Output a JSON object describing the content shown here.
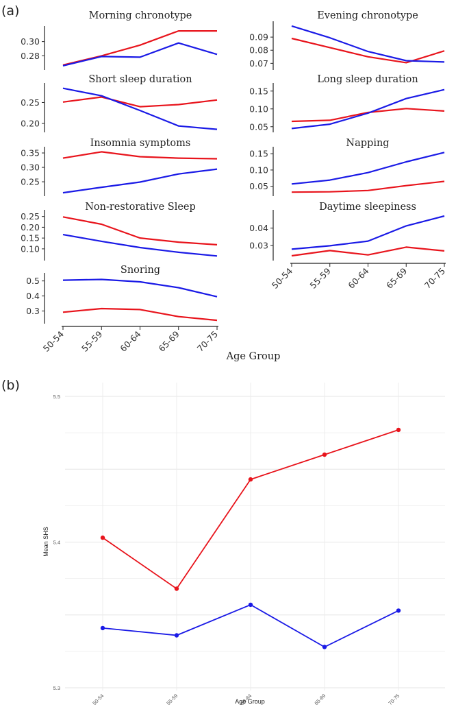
{
  "panel_a_label": "(a)",
  "panel_b_label": "(b)",
  "colors": {
    "series_a": "#e8141c",
    "series_b": "#1a1ae6"
  },
  "chart_data": [
    {
      "type": "line",
      "title": "Morning chronotype",
      "x": [
        "50-54",
        "55-59",
        "60-64",
        "65-69",
        "70-75"
      ],
      "ylim": [
        0.262,
        0.318
      ],
      "yticks": [
        "0.28",
        "0.30"
      ],
      "series": [
        {
          "name": "red",
          "values": [
            0.267,
            0.28,
            0.295,
            0.315,
            0.315
          ]
        },
        {
          "name": "blue",
          "values": [
            0.266,
            0.279,
            0.278,
            0.298,
            0.282
          ]
        }
      ]
    },
    {
      "type": "line",
      "title": "Evening chronotype",
      "x": [
        "50-54",
        "55-59",
        "60-64",
        "65-69",
        "70-75"
      ],
      "ylim": [
        0.066,
        0.1
      ],
      "yticks": [
        "0.07",
        "0.08",
        "0.09"
      ],
      "series": [
        {
          "name": "red",
          "values": [
            0.089,
            0.082,
            0.075,
            0.0705,
            0.0795
          ]
        },
        {
          "name": "blue",
          "values": [
            0.0985,
            0.0895,
            0.079,
            0.072,
            0.071
          ]
        }
      ]
    },
    {
      "type": "line",
      "title": "Short sleep duration",
      "x": [
        "50-54",
        "55-59",
        "60-64",
        "65-69",
        "70-75"
      ],
      "ylim": [
        0.182,
        0.29
      ],
      "yticks": [
        "0.20",
        "0.25"
      ],
      "series": [
        {
          "name": "red",
          "values": [
            0.251,
            0.263,
            0.24,
            0.245,
            0.256
          ]
        },
        {
          "name": "blue",
          "values": [
            0.284,
            0.266,
            0.231,
            0.194,
            0.186
          ]
        }
      ]
    },
    {
      "type": "line",
      "title": "Long sleep duration",
      "x": [
        "50-54",
        "55-59",
        "60-64",
        "65-69",
        "70-75"
      ],
      "ylim": [
        0.038,
        0.165
      ],
      "yticks": [
        "0.05",
        "0.10",
        "0.15"
      ],
      "series": [
        {
          "name": "red",
          "values": [
            0.065,
            0.068,
            0.09,
            0.101,
            0.094
          ]
        },
        {
          "name": "blue",
          "values": [
            0.045,
            0.057,
            0.088,
            0.129,
            0.154
          ]
        }
      ]
    },
    {
      "type": "line",
      "title": "Insomnia symptoms",
      "x": [
        "50-54",
        "55-59",
        "60-64",
        "65-69",
        "70-75"
      ],
      "ylim": [
        0.205,
        0.362
      ],
      "yticks": [
        "0.25",
        "0.30",
        "0.35"
      ],
      "series": [
        {
          "name": "red",
          "values": [
            0.332,
            0.354,
            0.337,
            0.332,
            0.33
          ]
        },
        {
          "name": "blue",
          "values": [
            0.212,
            0.231,
            0.249,
            0.277,
            0.294
          ]
        }
      ]
    },
    {
      "type": "line",
      "title": "Napping",
      "x": [
        "50-54",
        "55-59",
        "60-64",
        "65-69",
        "70-75"
      ],
      "ylim": [
        0.024,
        0.163
      ],
      "yticks": [
        "0.05",
        "0.10",
        "0.15"
      ],
      "series": [
        {
          "name": "red",
          "values": [
            0.032,
            0.033,
            0.037,
            0.052,
            0.065
          ]
        },
        {
          "name": "blue",
          "values": [
            0.057,
            0.069,
            0.092,
            0.125,
            0.154
          ]
        }
      ]
    },
    {
      "type": "line",
      "title": "Non-restorative Sleep",
      "x": [
        "50-54",
        "55-59",
        "60-64",
        "65-69",
        "70-75"
      ],
      "ylim": [
        0.052,
        0.268
      ],
      "yticks": [
        "0.10",
        "0.15",
        "0.20",
        "0.25"
      ],
      "series": [
        {
          "name": "red",
          "values": [
            0.248,
            0.214,
            0.15,
            0.131,
            0.119
          ]
        },
        {
          "name": "blue",
          "values": [
            0.166,
            0.135,
            0.106,
            0.084,
            0.067
          ]
        }
      ]
    },
    {
      "type": "line",
      "title": "Daytime sleepiness",
      "x": [
        "50-54",
        "55-59",
        "60-64",
        "65-69",
        "70-75"
      ],
      "ylim": [
        0.022,
        0.049
      ],
      "yticks": [
        "0.03",
        "0.04"
      ],
      "series": [
        {
          "name": "red",
          "values": [
            0.024,
            0.027,
            0.0245,
            0.029,
            0.0268
          ]
        },
        {
          "name": "blue",
          "values": [
            0.0278,
            0.0298,
            0.0325,
            0.0413,
            0.047
          ]
        }
      ]
    },
    {
      "type": "line",
      "title": "Snoring",
      "x": [
        "50-54",
        "55-59",
        "60-64",
        "65-69",
        "70-75"
      ],
      "ylim": [
        0.225,
        0.535
      ],
      "yticks": [
        "0.3",
        "0.4",
        "0.5"
      ],
      "xlabel": "Age Group",
      "series": [
        {
          "name": "red",
          "values": [
            0.292,
            0.316,
            0.31,
            0.263,
            0.238
          ]
        },
        {
          "name": "blue",
          "values": [
            0.505,
            0.51,
            0.494,
            0.455,
            0.395
          ]
        }
      ]
    },
    {
      "type": "line",
      "title": "",
      "x": [
        "50-54",
        "55-59",
        "60-64",
        "65-69",
        "70-75"
      ],
      "xlabel": "Age Group",
      "ylabel": "Mean SHS",
      "ylim": [
        5.3,
        5.5
      ],
      "yticks": [
        "5.3",
        "5.4",
        "5.5"
      ],
      "grid": true,
      "series": [
        {
          "name": "red",
          "values": [
            5.403,
            5.368,
            5.443,
            5.46,
            5.477
          ]
        },
        {
          "name": "blue",
          "values": [
            5.341,
            5.336,
            5.357,
            5.328,
            5.353
          ]
        }
      ]
    }
  ]
}
